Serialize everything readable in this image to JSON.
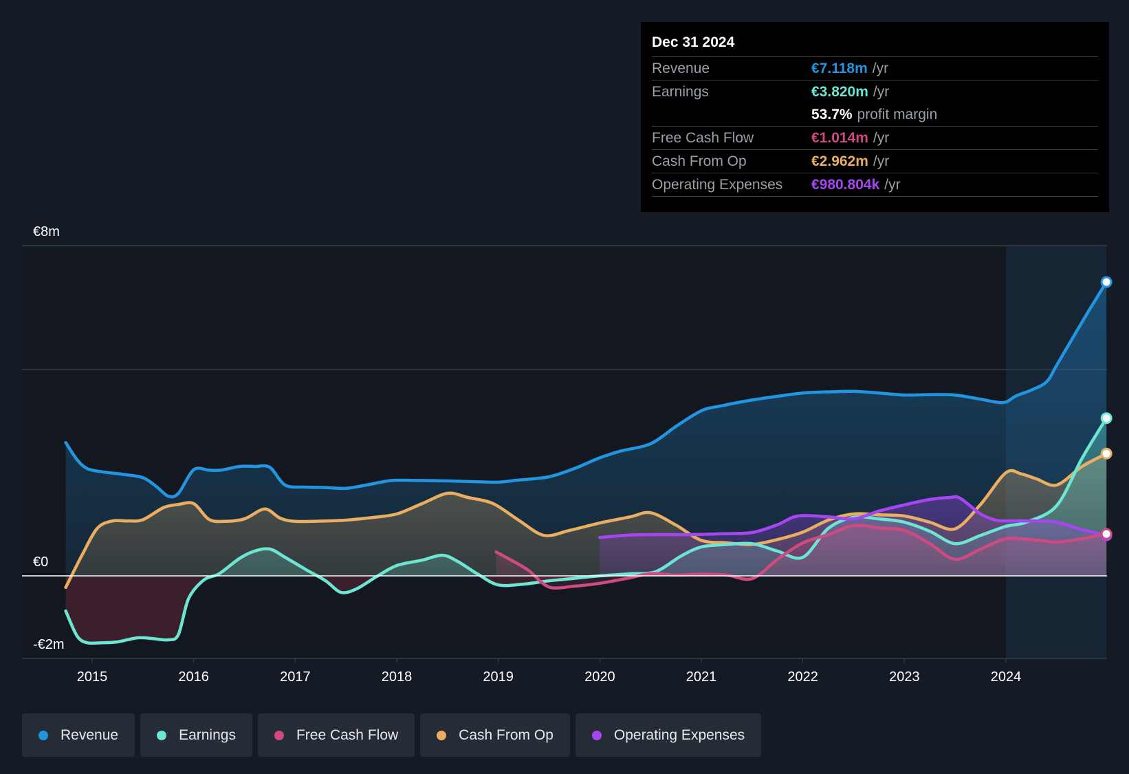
{
  "colors": {
    "background": "#151b24",
    "revenue": "#2394df",
    "earnings": "#6ce5d3",
    "fcf": "#d04a82",
    "cfo": "#e9ae62",
    "opex": "#a646f0",
    "grid": "#3a4350",
    "zero": "#ffffff",
    "axis_text": "#ffffff"
  },
  "tooltip": {
    "date": "Dec 31 2024",
    "rows": [
      {
        "label": "Revenue",
        "value": "€7.118m",
        "unit": "/yr",
        "color": "#2394df"
      },
      {
        "label": "Earnings",
        "value": "€3.820m",
        "unit": "/yr",
        "color": "#6ce5d3"
      },
      {
        "label": "",
        "value": "53.7%",
        "unit": "profit margin",
        "color": "#ffffff"
      },
      {
        "label": "Free Cash Flow",
        "value": "€1.014m",
        "unit": "/yr",
        "color": "#d04a82"
      },
      {
        "label": "Cash From Op",
        "value": "€2.962m",
        "unit": "/yr",
        "color": "#e9ae62"
      },
      {
        "label": "Operating Expenses",
        "value": "€980.804k",
        "unit": "/yr",
        "color": "#a646f0"
      }
    ]
  },
  "legend": [
    {
      "label": "Revenue",
      "color": "#2394df"
    },
    {
      "label": "Earnings",
      "color": "#6ce5d3"
    },
    {
      "label": "Free Cash Flow",
      "color": "#d04a82"
    },
    {
      "label": "Cash From Op",
      "color": "#e9ae62"
    },
    {
      "label": "Operating Expenses",
      "color": "#a646f0"
    }
  ],
  "chart_data": {
    "type": "area",
    "title": "",
    "xlabel": "",
    "ylabel": "",
    "xlim": [
      2014.74,
      2024.99
    ],
    "ylim": [
      -2,
      8
    ],
    "y_tick_labels": [
      "€8m",
      "€0",
      "-€2m"
    ],
    "y_ticks": [
      8,
      0,
      -2
    ],
    "y_gridlines": [
      8,
      5,
      0,
      -2
    ],
    "x_ticks": [
      2015,
      2016,
      2017,
      2018,
      2019,
      2020,
      2021,
      2022,
      2023,
      2024
    ],
    "x_tick_labels": [
      "2015",
      "2016",
      "2017",
      "2018",
      "2019",
      "2020",
      "2021",
      "2022",
      "2023",
      "2024"
    ],
    "highlight_region": [
      2024.0,
      2024.99
    ],
    "series": [
      {
        "name": "Revenue",
        "key": "revenue",
        "points": [
          [
            2014.74,
            3.23
          ],
          [
            2014.85,
            2.82
          ],
          [
            2014.95,
            2.6
          ],
          [
            2015.1,
            2.52
          ],
          [
            2015.3,
            2.46
          ],
          [
            2015.5,
            2.38
          ],
          [
            2015.63,
            2.17
          ],
          [
            2015.75,
            1.93
          ],
          [
            2015.85,
            2.0
          ],
          [
            2016.0,
            2.57
          ],
          [
            2016.15,
            2.56
          ],
          [
            2016.27,
            2.56
          ],
          [
            2016.45,
            2.65
          ],
          [
            2016.6,
            2.65
          ],
          [
            2016.75,
            2.63
          ],
          [
            2016.9,
            2.2
          ],
          [
            2017.1,
            2.15
          ],
          [
            2017.3,
            2.14
          ],
          [
            2017.5,
            2.12
          ],
          [
            2017.7,
            2.2
          ],
          [
            2017.95,
            2.31
          ],
          [
            2018.2,
            2.31
          ],
          [
            2018.5,
            2.3
          ],
          [
            2018.8,
            2.28
          ],
          [
            2019.0,
            2.27
          ],
          [
            2019.2,
            2.32
          ],
          [
            2019.5,
            2.4
          ],
          [
            2019.75,
            2.6
          ],
          [
            2020.0,
            2.86
          ],
          [
            2020.2,
            3.02
          ],
          [
            2020.5,
            3.2
          ],
          [
            2020.75,
            3.62
          ],
          [
            2021.0,
            4.0
          ],
          [
            2021.2,
            4.12
          ],
          [
            2021.5,
            4.26
          ],
          [
            2021.75,
            4.35
          ],
          [
            2022.0,
            4.43
          ],
          [
            2022.3,
            4.46
          ],
          [
            2022.5,
            4.47
          ],
          [
            2022.75,
            4.43
          ],
          [
            2023.0,
            4.38
          ],
          [
            2023.25,
            4.39
          ],
          [
            2023.5,
            4.38
          ],
          [
            2023.75,
            4.28
          ],
          [
            2023.9,
            4.21
          ],
          [
            2024.0,
            4.21
          ],
          [
            2024.1,
            4.36
          ],
          [
            2024.25,
            4.5
          ],
          [
            2024.4,
            4.7
          ],
          [
            2024.5,
            5.1
          ],
          [
            2024.75,
            6.15
          ],
          [
            2024.99,
            7.118
          ]
        ]
      },
      {
        "name": "Cash From Op",
        "key": "cfo",
        "points": [
          [
            2014.74,
            -0.28
          ],
          [
            2014.9,
            0.5
          ],
          [
            2015.05,
            1.15
          ],
          [
            2015.2,
            1.33
          ],
          [
            2015.35,
            1.33
          ],
          [
            2015.5,
            1.36
          ],
          [
            2015.7,
            1.65
          ],
          [
            2015.85,
            1.73
          ],
          [
            2016.0,
            1.75
          ],
          [
            2016.15,
            1.37
          ],
          [
            2016.3,
            1.32
          ],
          [
            2016.5,
            1.38
          ],
          [
            2016.7,
            1.62
          ],
          [
            2016.85,
            1.4
          ],
          [
            2017.0,
            1.32
          ],
          [
            2017.3,
            1.33
          ],
          [
            2017.5,
            1.35
          ],
          [
            2017.75,
            1.41
          ],
          [
            2018.0,
            1.5
          ],
          [
            2018.25,
            1.75
          ],
          [
            2018.5,
            2.0
          ],
          [
            2018.7,
            1.9
          ],
          [
            2018.95,
            1.75
          ],
          [
            2019.2,
            1.35
          ],
          [
            2019.45,
            0.98
          ],
          [
            2019.7,
            1.1
          ],
          [
            2020.0,
            1.28
          ],
          [
            2020.3,
            1.43
          ],
          [
            2020.5,
            1.53
          ],
          [
            2020.75,
            1.23
          ],
          [
            2021.0,
            0.86
          ],
          [
            2021.25,
            0.8
          ],
          [
            2021.5,
            0.76
          ],
          [
            2021.75,
            0.88
          ],
          [
            2022.0,
            1.06
          ],
          [
            2022.25,
            1.35
          ],
          [
            2022.5,
            1.5
          ],
          [
            2022.75,
            1.48
          ],
          [
            2023.0,
            1.45
          ],
          [
            2023.25,
            1.3
          ],
          [
            2023.5,
            1.14
          ],
          [
            2023.75,
            1.73
          ],
          [
            2024.0,
            2.5
          ],
          [
            2024.15,
            2.47
          ],
          [
            2024.3,
            2.35
          ],
          [
            2024.5,
            2.2
          ],
          [
            2024.75,
            2.65
          ],
          [
            2024.99,
            2.962
          ]
        ]
      },
      {
        "name": "Earnings",
        "key": "earnings",
        "points": [
          [
            2014.74,
            -0.85
          ],
          [
            2014.85,
            -1.45
          ],
          [
            2014.95,
            -1.62
          ],
          [
            2015.1,
            -1.62
          ],
          [
            2015.25,
            -1.6
          ],
          [
            2015.45,
            -1.5
          ],
          [
            2015.6,
            -1.52
          ],
          [
            2015.75,
            -1.55
          ],
          [
            2015.85,
            -1.42
          ],
          [
            2015.95,
            -0.55
          ],
          [
            2016.1,
            -0.1
          ],
          [
            2016.25,
            0.05
          ],
          [
            2016.45,
            0.42
          ],
          [
            2016.6,
            0.6
          ],
          [
            2016.75,
            0.65
          ],
          [
            2016.9,
            0.45
          ],
          [
            2017.1,
            0.16
          ],
          [
            2017.3,
            -0.12
          ],
          [
            2017.45,
            -0.4
          ],
          [
            2017.6,
            -0.32
          ],
          [
            2017.8,
            -0.02
          ],
          [
            2018.0,
            0.25
          ],
          [
            2018.25,
            0.38
          ],
          [
            2018.45,
            0.5
          ],
          [
            2018.6,
            0.35
          ],
          [
            2018.8,
            0.04
          ],
          [
            2019.0,
            -0.22
          ],
          [
            2019.25,
            -0.2
          ],
          [
            2019.5,
            -0.12
          ],
          [
            2019.75,
            -0.06
          ],
          [
            2020.0,
            0.0
          ],
          [
            2020.3,
            0.05
          ],
          [
            2020.55,
            0.1
          ],
          [
            2020.8,
            0.48
          ],
          [
            2021.0,
            0.7
          ],
          [
            2021.25,
            0.76
          ],
          [
            2021.5,
            0.78
          ],
          [
            2021.75,
            0.6
          ],
          [
            2022.0,
            0.45
          ],
          [
            2022.25,
            1.15
          ],
          [
            2022.5,
            1.42
          ],
          [
            2022.75,
            1.38
          ],
          [
            2023.0,
            1.3
          ],
          [
            2023.25,
            1.08
          ],
          [
            2023.5,
            0.78
          ],
          [
            2023.75,
            0.98
          ],
          [
            2024.0,
            1.2
          ],
          [
            2024.2,
            1.3
          ],
          [
            2024.5,
            1.7
          ],
          [
            2024.75,
            2.85
          ],
          [
            2024.99,
            3.82
          ]
        ]
      },
      {
        "name": "Operating Expenses",
        "key": "opex",
        "points": [
          [
            2020.0,
            0.93
          ],
          [
            2020.3,
            0.99
          ],
          [
            2020.6,
            1.0
          ],
          [
            2020.9,
            1.0
          ],
          [
            2021.2,
            1.02
          ],
          [
            2021.5,
            1.05
          ],
          [
            2021.75,
            1.24
          ],
          [
            2021.95,
            1.45
          ],
          [
            2022.25,
            1.43
          ],
          [
            2022.5,
            1.38
          ],
          [
            2022.75,
            1.57
          ],
          [
            2023.0,
            1.72
          ],
          [
            2023.25,
            1.85
          ],
          [
            2023.45,
            1.9
          ],
          [
            2023.55,
            1.88
          ],
          [
            2023.75,
            1.5
          ],
          [
            2023.9,
            1.35
          ],
          [
            2024.0,
            1.33
          ],
          [
            2024.3,
            1.33
          ],
          [
            2024.5,
            1.3
          ],
          [
            2024.75,
            1.12
          ],
          [
            2024.99,
            0.981
          ]
        ]
      },
      {
        "name": "Free Cash Flow",
        "key": "fcf",
        "points": [
          [
            2018.98,
            0.58
          ],
          [
            2019.15,
            0.35
          ],
          [
            2019.3,
            0.13
          ],
          [
            2019.5,
            -0.27
          ],
          [
            2019.75,
            -0.25
          ],
          [
            2020.0,
            -0.18
          ],
          [
            2020.25,
            -0.07
          ],
          [
            2020.5,
            0.05
          ],
          [
            2020.75,
            0.02
          ],
          [
            2021.0,
            0.04
          ],
          [
            2021.25,
            0.02
          ],
          [
            2021.5,
            -0.07
          ],
          [
            2021.75,
            0.4
          ],
          [
            2022.0,
            0.8
          ],
          [
            2022.25,
            1.0
          ],
          [
            2022.5,
            1.22
          ],
          [
            2022.75,
            1.16
          ],
          [
            2023.0,
            1.1
          ],
          [
            2023.25,
            0.78
          ],
          [
            2023.5,
            0.4
          ],
          [
            2023.75,
            0.65
          ],
          [
            2024.0,
            0.9
          ],
          [
            2024.25,
            0.88
          ],
          [
            2024.5,
            0.82
          ],
          [
            2024.75,
            0.9
          ],
          [
            2024.99,
            1.014
          ]
        ]
      }
    ],
    "negative_band": {
      "series": "Earnings",
      "color": "#4a2231"
    }
  }
}
